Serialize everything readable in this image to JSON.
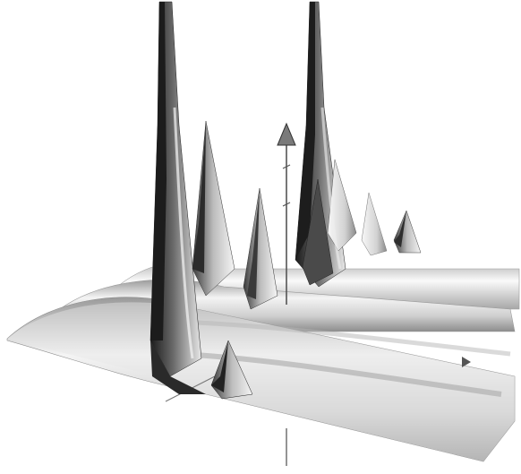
{
  "figure": {
    "kind": "3d-surface-plot",
    "colors": {
      "background": "#ffffff",
      "surface_light": "#f2f2f2",
      "surface_mid": "#bdbdbd",
      "surface_dark": "#2a2a2a",
      "axis": "#555555"
    },
    "axes": {
      "vertical_axis": {
        "arrow": true,
        "label": ""
      },
      "right_axis": {
        "arrow": true,
        "label": ""
      }
    }
  }
}
